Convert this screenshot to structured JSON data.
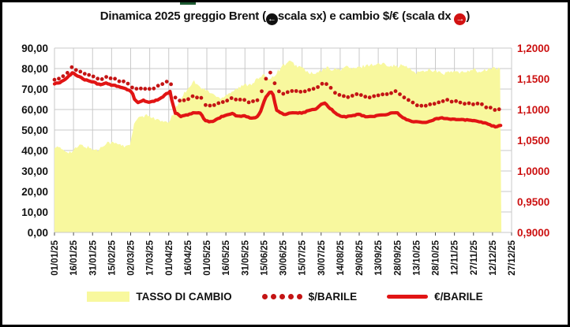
{
  "title": {
    "part1": "Dinamica 2025 greggio Brent (",
    "part2": "scala sx) e cambio $/€ (scala dx ",
    "part3": ")",
    "left_icon_glyph": "←",
    "right_icon_glyph": "→"
  },
  "colors": {
    "area_fill": "#f8f89e",
    "dotted_series": "#c41414",
    "solid_series": "#e11414",
    "grid": "#c9c9c9",
    "left_axis_text": "#111111",
    "right_axis_text": "#cc1111",
    "x_axis_text": "#111111",
    "frame_border": "#000000",
    "green_sliver": "#1e5b33"
  },
  "legend": [
    {
      "label": "TASSO DI CAMBIO",
      "type": "area"
    },
    {
      "label": "$/BARILE",
      "type": "dotted"
    },
    {
      "label": "€/BARILE",
      "type": "solid"
    }
  ],
  "chart_data": {
    "type": "line",
    "title": "Dinamica 2025 greggio Brent (scala sx) e cambio $/€ (scala dx)",
    "grid": true,
    "x_tick_labels": [
      "01/01/25",
      "16/01/25",
      "31/01/25",
      "15/02/25",
      "02/03/25",
      "17/03/25",
      "01/04/25",
      "16/04/25",
      "01/05/25",
      "16/05/25",
      "31/05/25",
      "15/06/25",
      "30/06/25",
      "15/07/25",
      "30/07/25",
      "14/08/25",
      "29/08/25",
      "13/09/25",
      "28/09/25",
      "13/10/25",
      "28/10/25",
      "12/11/25",
      "27/11/25",
      "12/12/25",
      "27/12/25"
    ],
    "x_tick_day_index": [
      0,
      15,
      30,
      45,
      60,
      75,
      90,
      105,
      120,
      135,
      150,
      165,
      180,
      195,
      210,
      225,
      240,
      255,
      270,
      285,
      300,
      315,
      330,
      345,
      360
    ],
    "x_range_days": [
      0,
      360
    ],
    "data_end_day": 352,
    "y_left": {
      "tick_labels": [
        "0,00",
        "10,00",
        "20,00",
        "30,00",
        "40,00",
        "50,00",
        "60,00",
        "70,00",
        "80,00",
        "90,00"
      ],
      "tick_values": [
        0,
        10,
        20,
        30,
        40,
        50,
        60,
        70,
        80,
        90
      ],
      "range": [
        0,
        90
      ]
    },
    "y_right": {
      "tick_labels": [
        "0,9000",
        "0,9500",
        "1,0000",
        "1,0500",
        "1,1000",
        "1,1500",
        "1,2000"
      ],
      "tick_values": [
        0.9,
        0.95,
        1.0,
        1.05,
        1.1,
        1.15,
        1.2
      ],
      "range": [
        0.9,
        1.2
      ]
    },
    "series": [
      {
        "name": "TASSO DI CAMBIO",
        "axis": "right",
        "style": "area",
        "points": [
          [
            0,
            1.04
          ],
          [
            6,
            1.035
          ],
          [
            13,
            1.03
          ],
          [
            20,
            1.042
          ],
          [
            27,
            1.038
          ],
          [
            34,
            1.033
          ],
          [
            41,
            1.047
          ],
          [
            48,
            1.045
          ],
          [
            55,
            1.04
          ],
          [
            60,
            1.045
          ],
          [
            62,
            1.07
          ],
          [
            64,
            1.082
          ],
          [
            68,
            1.088
          ],
          [
            75,
            1.09
          ],
          [
            82,
            1.082
          ],
          [
            88,
            1.078
          ],
          [
            91,
            1.082
          ],
          [
            95,
            1.1
          ],
          [
            100,
            1.12
          ],
          [
            105,
            1.135
          ],
          [
            110,
            1.146
          ],
          [
            115,
            1.135
          ],
          [
            120,
            1.131
          ],
          [
            125,
            1.125
          ],
          [
            130,
            1.118
          ],
          [
            135,
            1.124
          ],
          [
            140,
            1.13
          ],
          [
            145,
            1.135
          ],
          [
            150,
            1.14
          ],
          [
            155,
            1.142
          ],
          [
            160,
            1.15
          ],
          [
            165,
            1.155
          ],
          [
            170,
            1.15
          ],
          [
            175,
            1.16
          ],
          [
            180,
            1.172
          ],
          [
            185,
            1.178
          ],
          [
            190,
            1.172
          ],
          [
            195,
            1.168
          ],
          [
            200,
            1.16
          ],
          [
            205,
            1.157
          ],
          [
            210,
            1.163
          ],
          [
            215,
            1.168
          ],
          [
            220,
            1.165
          ],
          [
            225,
            1.165
          ],
          [
            230,
            1.17
          ],
          [
            235,
            1.166
          ],
          [
            240,
            1.168
          ],
          [
            245,
            1.172
          ],
          [
            250,
            1.173
          ],
          [
            255,
            1.174
          ],
          [
            260,
            1.174
          ],
          [
            265,
            1.172
          ],
          [
            270,
            1.17
          ],
          [
            275,
            1.172
          ],
          [
            280,
            1.165
          ],
          [
            285,
            1.16
          ],
          [
            290,
            1.162
          ],
          [
            295,
            1.165
          ],
          [
            300,
            1.163
          ],
          [
            305,
            1.158
          ],
          [
            310,
            1.16
          ],
          [
            315,
            1.162
          ],
          [
            320,
            1.159
          ],
          [
            325,
            1.163
          ],
          [
            330,
            1.166
          ],
          [
            335,
            1.16
          ],
          [
            340,
            1.164
          ],
          [
            345,
            1.168
          ],
          [
            350,
            1.166
          ],
          [
            352,
            1.166
          ]
        ]
      },
      {
        "name": "$/BARILE",
        "axis": "left",
        "style": "dotted",
        "points": [
          [
            0,
            74.5
          ],
          [
            4,
            75.5
          ],
          [
            8,
            76.5
          ],
          [
            11,
            78.5
          ],
          [
            14,
            80.5
          ],
          [
            18,
            79.5
          ],
          [
            24,
            77.5
          ],
          [
            30,
            76.5
          ],
          [
            36,
            75.0
          ],
          [
            41,
            76.0
          ],
          [
            45,
            75.0
          ],
          [
            52,
            74.0
          ],
          [
            58,
            72.5
          ],
          [
            60,
            71.5
          ],
          [
            66,
            69.5
          ],
          [
            70,
            70.5
          ],
          [
            75,
            70.0
          ],
          [
            80,
            71.0
          ],
          [
            85,
            72.5
          ],
          [
            88,
            74.0
          ],
          [
            91,
            74.5
          ],
          [
            93,
            70.0
          ],
          [
            95,
            65.5
          ],
          [
            100,
            63.5
          ],
          [
            105,
            65.0
          ],
          [
            110,
            66.5
          ],
          [
            115,
            66.0
          ],
          [
            119,
            62.0
          ],
          [
            124,
            61.5
          ],
          [
            128,
            63.0
          ],
          [
            135,
            64.5
          ],
          [
            140,
            65.5
          ],
          [
            145,
            64.5
          ],
          [
            150,
            64.5
          ],
          [
            155,
            63.5
          ],
          [
            160,
            65.0
          ],
          [
            163,
            69.0
          ],
          [
            166,
            74.5
          ],
          [
            170,
            78.0
          ],
          [
            172,
            76.5
          ],
          [
            175,
            69.0
          ],
          [
            180,
            67.5
          ],
          [
            185,
            68.5
          ],
          [
            190,
            69.5
          ],
          [
            195,
            68.5
          ],
          [
            200,
            69.5
          ],
          [
            205,
            70.0
          ],
          [
            210,
            72.5
          ],
          [
            213,
            73.5
          ],
          [
            218,
            70.0
          ],
          [
            225,
            66.5
          ],
          [
            230,
            66.0
          ],
          [
            235,
            67.0
          ],
          [
            240,
            67.5
          ],
          [
            245,
            66.5
          ],
          [
            250,
            66.0
          ],
          [
            255,
            67.0
          ],
          [
            262,
            67.8
          ],
          [
            270,
            69.0
          ],
          [
            274,
            66.5
          ],
          [
            280,
            64.0
          ],
          [
            285,
            62.5
          ],
          [
            290,
            61.5
          ],
          [
            295,
            62.0
          ],
          [
            300,
            63.0
          ],
          [
            305,
            64.5
          ],
          [
            310,
            64.5
          ],
          [
            315,
            64.0
          ],
          [
            322,
            63.3
          ],
          [
            330,
            62.5
          ],
          [
            336,
            62.5
          ],
          [
            342,
            61.0
          ],
          [
            347,
            60.2
          ],
          [
            352,
            59.5
          ]
        ]
      },
      {
        "name": "€/BARILE",
        "axis": "left",
        "style": "solid",
        "points": [
          [
            0,
            72.5
          ],
          [
            4,
            73.2
          ],
          [
            8,
            74.5
          ],
          [
            11,
            76.0
          ],
          [
            14,
            78.0
          ],
          [
            18,
            76.5
          ],
          [
            24,
            74.5
          ],
          [
            30,
            73.5
          ],
          [
            36,
            72.0
          ],
          [
            41,
            73.0
          ],
          [
            45,
            72.0
          ],
          [
            52,
            71.0
          ],
          [
            58,
            69.5
          ],
          [
            61,
            68.5
          ],
          [
            63,
            65.0
          ],
          [
            66,
            63.5
          ],
          [
            70,
            64.5
          ],
          [
            75,
            63.5
          ],
          [
            80,
            64.5
          ],
          [
            85,
            66.0
          ],
          [
            88,
            67.5
          ],
          [
            91,
            68.8
          ],
          [
            93,
            63.0
          ],
          [
            95,
            58.5
          ],
          [
            100,
            56.5
          ],
          [
            105,
            57.5
          ],
          [
            110,
            58.5
          ],
          [
            115,
            58.0
          ],
          [
            119,
            54.5
          ],
          [
            124,
            54.0
          ],
          [
            128,
            55.5
          ],
          [
            135,
            57.3
          ],
          [
            140,
            58.0
          ],
          [
            145,
            56.5
          ],
          [
            150,
            57.0
          ],
          [
            155,
            55.5
          ],
          [
            160,
            56.5
          ],
          [
            163,
            60.0
          ],
          [
            166,
            65.5
          ],
          [
            170,
            69.0
          ],
          [
            172,
            67.5
          ],
          [
            175,
            59.5
          ],
          [
            180,
            57.7
          ],
          [
            185,
            58.0
          ],
          [
            190,
            58.5
          ],
          [
            195,
            58.3
          ],
          [
            200,
            59.5
          ],
          [
            205,
            60.0
          ],
          [
            210,
            62.3
          ],
          [
            213,
            63.0
          ],
          [
            218,
            60.0
          ],
          [
            225,
            56.7
          ],
          [
            230,
            56.5
          ],
          [
            235,
            57.0
          ],
          [
            240,
            57.7
          ],
          [
            245,
            56.5
          ],
          [
            250,
            56.5
          ],
          [
            255,
            57.1
          ],
          [
            262,
            57.8
          ],
          [
            270,
            58.6
          ],
          [
            274,
            56.0
          ],
          [
            280,
            54.5
          ],
          [
            285,
            54.0
          ],
          [
            290,
            53.5
          ],
          [
            295,
            54.0
          ],
          [
            300,
            55.5
          ],
          [
            305,
            56.0
          ],
          [
            310,
            55.5
          ],
          [
            315,
            55.3
          ],
          [
            322,
            55.0
          ],
          [
            330,
            54.6
          ],
          [
            336,
            54.0
          ],
          [
            342,
            52.9
          ],
          [
            347,
            51.5
          ],
          [
            352,
            52.2
          ]
        ]
      }
    ]
  }
}
